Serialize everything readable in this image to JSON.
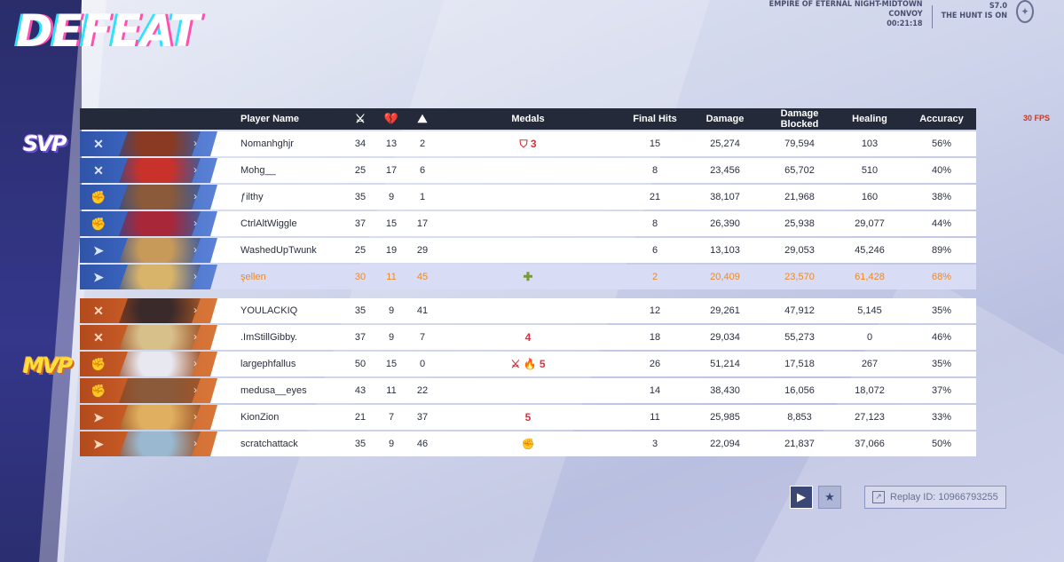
{
  "result_title": "DEFEAT",
  "match_info": {
    "map": "EMPIRE OF ETERNAL NIGHT-MIDTOWN",
    "mode": "CONVOY",
    "time": "00:21:18",
    "season": "S7.0",
    "season_name": "THE HUNT IS ON"
  },
  "fps": "30 FPS",
  "badges": {
    "svp": "SVP",
    "mvp": "MVP"
  },
  "columns": {
    "player": "Player Name",
    "medals": "Medals",
    "final_hits": "Final Hits",
    "damage": "Damage",
    "damage_blocked": "Damage Blocked",
    "healing": "Healing",
    "accuracy": "Accuracy"
  },
  "team_blue": [
    {
      "name": "Nomanhghjr",
      "k": "34",
      "d": "13",
      "a": "2",
      "medals": "⛉ 3",
      "final_hits": "15",
      "damage": "25,274",
      "blocked": "79,594",
      "healing": "103",
      "accuracy": "56%",
      "role": "✕",
      "portrait": "#8a3a22"
    },
    {
      "name": "Mohg__",
      "k": "25",
      "d": "17",
      "a": "6",
      "medals": "",
      "final_hits": "8",
      "damage": "23,456",
      "blocked": "65,702",
      "healing": "510",
      "accuracy": "40%",
      "role": "✕",
      "portrait": "#c8322a"
    },
    {
      "name": "ƒilthy",
      "k": "35",
      "d": "9",
      "a": "1",
      "medals": "",
      "final_hits": "21",
      "damage": "38,107",
      "blocked": "21,968",
      "healing": "160",
      "accuracy": "38%",
      "role": "✊",
      "portrait": "#8a5a3a"
    },
    {
      "name": "CtrlAltWiggle",
      "k": "37",
      "d": "15",
      "a": "17",
      "medals": "",
      "final_hits": "8",
      "damage": "26,390",
      "blocked": "25,938",
      "healing": "29,077",
      "accuracy": "44%",
      "role": "✊",
      "portrait": "#a8283a"
    },
    {
      "name": "WashedUpTwunk",
      "k": "25",
      "d": "19",
      "a": "29",
      "medals": "",
      "final_hits": "6",
      "damage": "13,103",
      "blocked": "29,053",
      "healing": "45,246",
      "accuracy": "89%",
      "role": "➤",
      "portrait": "#c89a5a"
    },
    {
      "name": "şellen",
      "k": "30",
      "d": "11",
      "a": "45",
      "medals": "✚",
      "final_hits": "2",
      "damage": "20,409",
      "blocked": "23,570",
      "healing": "61,428",
      "accuracy": "68%",
      "role": "➤",
      "portrait": "#d8b46a",
      "self": true
    }
  ],
  "team_red": [
    {
      "name": "YOULACKIQ",
      "k": "35",
      "d": "9",
      "a": "41",
      "medals": "",
      "final_hits": "12",
      "damage": "29,261",
      "blocked": "47,912",
      "healing": "5,145",
      "accuracy": "35%",
      "role": "✕",
      "portrait": "#3a2a2a"
    },
    {
      "name": ".ImStillGibby.",
      "k": "37",
      "d": "9",
      "a": "7",
      "medals": "4",
      "final_hits": "18",
      "damage": "29,034",
      "blocked": "55,273",
      "healing": "0",
      "accuracy": "46%",
      "role": "✕",
      "portrait": "#d8c08a"
    },
    {
      "name": "largephfallus",
      "k": "50",
      "d": "15",
      "a": "0",
      "medals": "⚔ 🔥 5",
      "final_hits": "26",
      "damage": "51,214",
      "blocked": "17,518",
      "healing": "267",
      "accuracy": "35%",
      "role": "✊",
      "portrait": "#e8e8f0"
    },
    {
      "name": "medusa__eyes",
      "k": "43",
      "d": "11",
      "a": "22",
      "medals": "",
      "final_hits": "14",
      "damage": "38,430",
      "blocked": "16,056",
      "healing": "18,072",
      "accuracy": "37%",
      "role": "✊",
      "portrait": "#8a5a3a"
    },
    {
      "name": "KionZion",
      "k": "21",
      "d": "7",
      "a": "37",
      "medals": "5",
      "final_hits": "11",
      "damage": "25,985",
      "blocked": "8,853",
      "healing": "27,123",
      "accuracy": "33%",
      "role": "➤",
      "portrait": "#e0b060"
    },
    {
      "name": "scratchattack",
      "k": "35",
      "d": "9",
      "a": "46",
      "medals": "✊",
      "final_hits": "3",
      "damage": "22,094",
      "blocked": "21,837",
      "healing": "37,066",
      "accuracy": "50%",
      "role": "➤",
      "portrait": "#9ab8d0"
    }
  ],
  "replay": {
    "label": "Replay ID: 10966793255"
  },
  "colors": {
    "blue_team": "#3d68c4",
    "red_team": "#cc6028",
    "self_text": "#e88a2a",
    "header_bg": "#242a3a"
  }
}
